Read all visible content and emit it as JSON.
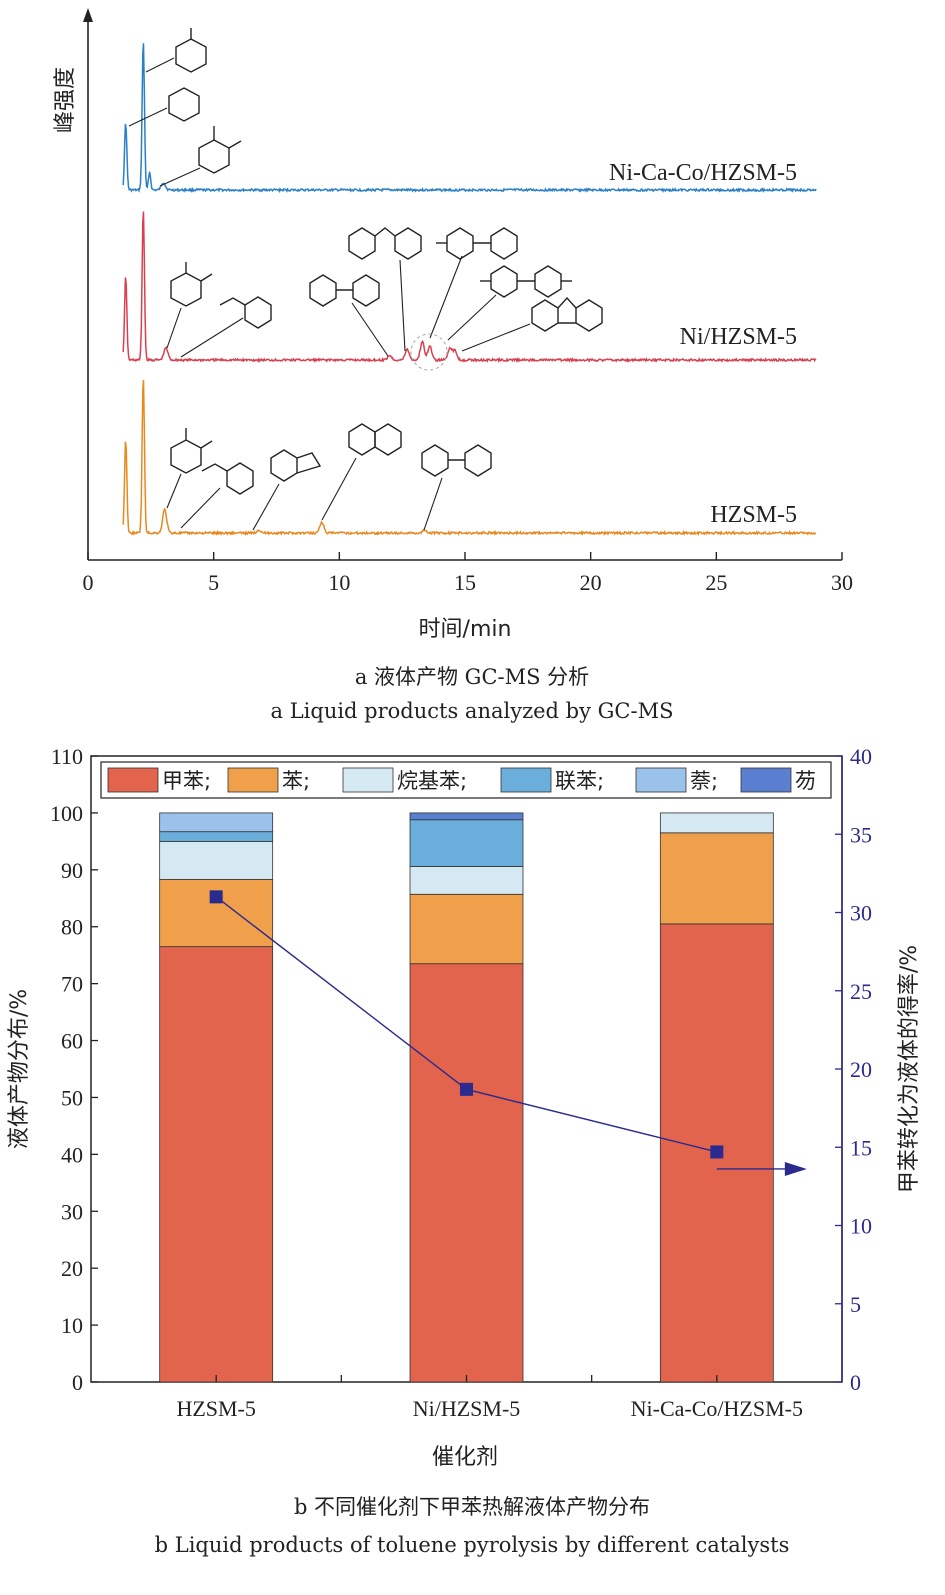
{
  "chart_data": [
    {
      "panel": "a",
      "type": "line",
      "xlabel": "时间/min",
      "ylabel": "峰强度",
      "xlim": [
        0,
        30
      ],
      "xticks": [
        "0",
        "5",
        "10",
        "15",
        "20",
        "25",
        "30"
      ],
      "caption_cn": "a  液体产物 GC-MS 分析",
      "caption_en": "a  Liquid products analyzed by GC-MS",
      "series": [
        {
          "name": "Ni-Ca-Co/HZSM-5",
          "color": "#2a7fc9",
          "peaks": [
            {
              "x": 1.5,
              "h": 0.45
            },
            {
              "x": 2.2,
              "h": 1.0
            },
            {
              "x": 2.45,
              "h": 0.12
            },
            {
              "x": 3.0,
              "h": 0.05
            }
          ]
        },
        {
          "name": "Ni/HZSM-5",
          "color": "#d9404f",
          "peaks": [
            {
              "x": 1.5,
              "h": 0.55
            },
            {
              "x": 2.2,
              "h": 1.0
            },
            {
              "x": 3.1,
              "h": 0.08
            },
            {
              "x": 12.0,
              "h": 0.03
            },
            {
              "x": 12.7,
              "h": 0.07
            },
            {
              "x": 13.3,
              "h": 0.12
            },
            {
              "x": 13.6,
              "h": 0.09
            },
            {
              "x": 14.4,
              "h": 0.08
            },
            {
              "x": 14.6,
              "h": 0.06
            }
          ]
        },
        {
          "name": "HZSM-5",
          "color": "#e8891f",
          "peaks": [
            {
              "x": 1.5,
              "h": 0.6
            },
            {
              "x": 2.2,
              "h": 1.0
            },
            {
              "x": 3.05,
              "h": 0.15
            },
            {
              "x": 6.8,
              "h": 0.02
            },
            {
              "x": 9.3,
              "h": 0.07
            },
            {
              "x": 13.4,
              "h": 0.02
            }
          ]
        }
      ]
    },
    {
      "panel": "b",
      "type": "bar",
      "categories": [
        "HZSM-5",
        "Ni/HZSM-5",
        "Ni-Ca-Co/HZSM-5"
      ],
      "xlabel": "催化剂",
      "ylabel": "液体产物分布/%",
      "ylabel_right": "甲苯转化为液体的得率/%",
      "ylim": [
        0,
        110
      ],
      "ylim_right": [
        0,
        40
      ],
      "yticks": [
        "0",
        "10",
        "20",
        "30",
        "40",
        "50",
        "60",
        "70",
        "80",
        "90",
        "100",
        "110"
      ],
      "yticks_right": [
        "0",
        "5",
        "10",
        "15",
        "20",
        "25",
        "30",
        "35",
        "40"
      ],
      "legend_position": "top",
      "series": [
        {
          "name": "甲苯;",
          "color": "#e2644c",
          "values": [
            76.5,
            73.5,
            80.5
          ]
        },
        {
          "name": "苯;",
          "color": "#f0a04b",
          "values": [
            11.8,
            12.2,
            16.0
          ]
        },
        {
          "name": "烷基苯;",
          "color": "#d4e9f2",
          "values": [
            6.7,
            4.9,
            3.5
          ]
        },
        {
          "name": "联苯;",
          "color": "#6aafdc",
          "values": [
            1.7,
            8.2,
            0
          ]
        },
        {
          "name": "萘;",
          "color": "#9bc2ea",
          "values": [
            3.3,
            0,
            0
          ]
        },
        {
          "name": "芴",
          "color": "#5b7fd0",
          "values": [
            0,
            1.2,
            0
          ]
        }
      ],
      "line_series": {
        "name": "",
        "color": "#2a2a8f",
        "values": [
          31.0,
          18.7,
          14.7
        ]
      },
      "caption_cn": "b  不同催化剂下甲苯热解液体产物分布",
      "caption_en": "b  Liquid products of toluene pyrolysis by different catalysts"
    }
  ]
}
